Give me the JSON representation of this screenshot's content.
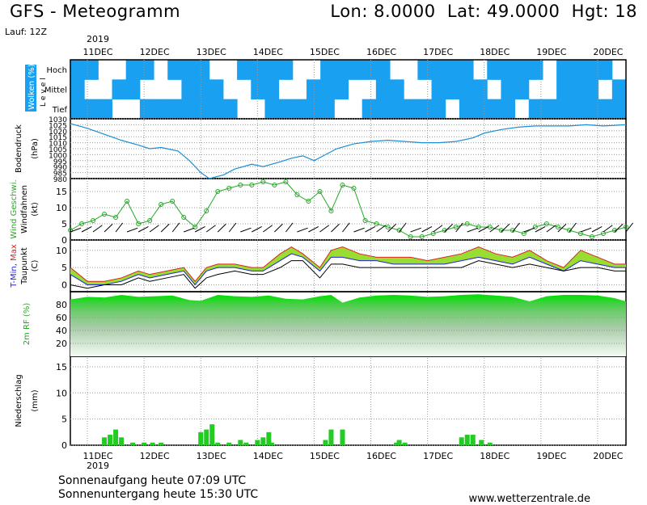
{
  "header": {
    "title": "GFS - Meteogramm",
    "location": "Lon: 8.0000  Lat: 49.0000  Hgt: 18",
    "run": "Lauf: 12Z"
  },
  "footer": {
    "sunrise": "Sonnenaufgang heute 07:09 UTC",
    "sunset": "Sonnenuntergang heute 15:30 UTC",
    "source": "www.wetterzentrale.de"
  },
  "chart_data": {
    "type": "meteogram",
    "year": "2019",
    "days": [
      "11DEC",
      "12DEC",
      "13DEC",
      "14DEC",
      "15DEC",
      "16DEC",
      "17DEC",
      "18DEC",
      "19DEC",
      "20DEC"
    ],
    "x_range_days": [
      10.7,
      20.5
    ],
    "colors": {
      "cloud": "#1aa0f0",
      "green": "#22cc22",
      "grid": "#9a9a9a",
      "lightgreen": "#99dd33"
    },
    "panels": [
      {
        "id": "clouds",
        "type": "heatmap",
        "ylabel": "Wolken (%)",
        "ylabel2": "Level",
        "levels": [
          "Hoch",
          "Mittel",
          "Tief"
        ],
        "ytick_labels": [
          "Hoch",
          "Mittel",
          "Tief"
        ]
      },
      {
        "id": "pressure",
        "type": "line",
        "ylabel": "Bodendruck",
        "yunit": "(hPa)",
        "ylim": [
          980,
          1030
        ],
        "yticks": [
          980,
          985,
          990,
          995,
          1000,
          1005,
          1010,
          1015,
          1020,
          1025,
          1030
        ],
        "x": [
          10.7,
          11.0,
          11.3,
          11.6,
          11.9,
          12.1,
          12.3,
          12.6,
          12.8,
          13.0,
          13.15,
          13.4,
          13.6,
          13.9,
          14.1,
          14.4,
          14.6,
          14.8,
          15.0,
          15.2,
          15.4,
          15.7,
          16.0,
          16.3,
          16.6,
          16.9,
          17.2,
          17.5,
          17.8,
          18.0,
          18.3,
          18.6,
          18.9,
          19.2,
          19.5,
          19.8,
          20.1,
          20.5
        ],
        "y": [
          1026,
          1022,
          1017,
          1012,
          1008,
          1005,
          1006,
          1003,
          995,
          985,
          980,
          983,
          988,
          992,
          990,
          994,
          997,
          999,
          995,
          1000,
          1005,
          1009,
          1011,
          1012,
          1011,
          1010,
          1010,
          1011,
          1014,
          1018,
          1021,
          1023,
          1024,
          1024,
          1024,
          1025,
          1024,
          1025
        ]
      },
      {
        "id": "wind",
        "type": "line",
        "ylabel": "Wind Geschwi.",
        "ylabel2": "Windfahnen",
        "yunit": "(kt)",
        "ylim": [
          0,
          19
        ],
        "yticks": [
          0,
          5,
          10,
          15
        ],
        "x": [
          10.7,
          10.9,
          11.1,
          11.3,
          11.5,
          11.7,
          11.9,
          12.1,
          12.3,
          12.5,
          12.7,
          12.9,
          13.1,
          13.3,
          13.5,
          13.7,
          13.9,
          14.1,
          14.3,
          14.5,
          14.7,
          14.9,
          15.1,
          15.3,
          15.5,
          15.7,
          15.9,
          16.1,
          16.3,
          16.5,
          16.7,
          16.9,
          17.1,
          17.3,
          17.5,
          17.7,
          17.9,
          18.1,
          18.3,
          18.5,
          18.7,
          18.9,
          19.1,
          19.3,
          19.5,
          19.7,
          19.9,
          20.1,
          20.3,
          20.5
        ],
        "y": [
          3,
          5,
          6,
          8,
          7,
          12,
          5,
          6,
          11,
          12,
          7,
          4,
          9,
          15,
          16,
          17,
          17,
          18,
          17,
          18,
          14,
          12,
          15,
          9,
          17,
          16,
          6,
          5,
          4,
          3,
          1,
          1,
          2,
          3,
          4,
          5,
          4,
          4,
          3,
          3,
          2,
          4,
          5,
          4,
          3,
          2,
          1,
          2,
          3,
          4
        ]
      },
      {
        "id": "temperature",
        "type": "line",
        "ylabel": "T-Min, Max",
        "ylabel2": "Taupunkt",
        "yunit": "(C)",
        "ylim": [
          -2,
          13
        ],
        "yticks": [
          0,
          5,
          10
        ],
        "x": [
          10.7,
          11.0,
          11.3,
          11.6,
          11.9,
          12.1,
          12.4,
          12.7,
          12.9,
          13.1,
          13.3,
          13.6,
          13.9,
          14.1,
          14.4,
          14.6,
          14.8,
          15.1,
          15.3,
          15.5,
          15.8,
          16.1,
          16.4,
          16.7,
          17.0,
          17.3,
          17.6,
          17.9,
          18.2,
          18.5,
          18.8,
          19.1,
          19.4,
          19.7,
          20.0,
          20.3,
          20.5
        ],
        "t_max": [
          5,
          1,
          1,
          2,
          4,
          3,
          4,
          5,
          1,
          5,
          6,
          6,
          5,
          5,
          9,
          11,
          9,
          5,
          10,
          11,
          9,
          8,
          8,
          8,
          7,
          8,
          9,
          11,
          9,
          8,
          10,
          7,
          5,
          10,
          8,
          6,
          6
        ],
        "t_min": [
          3,
          0,
          0,
          1,
          3,
          2,
          3,
          4,
          0,
          4,
          5,
          5,
          4,
          4,
          7,
          9,
          8,
          4,
          8,
          8,
          7,
          7,
          6,
          6,
          6,
          6,
          7,
          8,
          7,
          6,
          8,
          6,
          4,
          7,
          6,
          5,
          5
        ],
        "dewpoint": [
          0,
          -1,
          0,
          0,
          2,
          1,
          2,
          3,
          -1,
          2,
          3,
          4,
          3,
          3,
          5,
          7,
          7,
          2,
          6,
          6,
          5,
          5,
          5,
          5,
          5,
          5,
          5,
          7,
          6,
          5,
          6,
          5,
          4,
          5,
          5,
          4,
          4
        ]
      },
      {
        "id": "humidity",
        "type": "area",
        "ylabel": "2m RF (%)",
        "ylim": [
          0,
          100
        ],
        "yticks": [
          20,
          40,
          60,
          80
        ],
        "x": [
          10.7,
          11.0,
          11.3,
          11.6,
          11.9,
          12.2,
          12.5,
          12.8,
          13.0,
          13.3,
          13.6,
          13.9,
          14.2,
          14.5,
          14.8,
          15.1,
          15.3,
          15.5,
          15.8,
          16.1,
          16.4,
          16.7,
          17.0,
          17.3,
          17.6,
          17.9,
          18.2,
          18.5,
          18.8,
          19.1,
          19.4,
          19.7,
          20.0,
          20.3,
          20.5
        ],
        "y": [
          88,
          92,
          91,
          95,
          92,
          93,
          94,
          87,
          86,
          95,
          93,
          92,
          94,
          89,
          88,
          93,
          95,
          83,
          91,
          94,
          95,
          94,
          92,
          93,
          95,
          96,
          94,
          92,
          85,
          93,
          95,
          95,
          94,
          90,
          85
        ]
      },
      {
        "id": "precip",
        "type": "bar",
        "ylabel": "Niederschlag",
        "yunit": "(mm)",
        "ylim": [
          0,
          17
        ],
        "yticks": [
          0,
          5,
          10,
          15
        ],
        "x": [
          11.3,
          11.4,
          11.5,
          11.6,
          11.8,
          12.0,
          12.15,
          12.3,
          13.0,
          13.1,
          13.2,
          13.3,
          13.5,
          13.7,
          13.8,
          14.0,
          14.1,
          14.2,
          14.25,
          15.2,
          15.3,
          15.5,
          16.45,
          16.5,
          16.6,
          17.6,
          17.7,
          17.8,
          17.95,
          18.1
        ],
        "y": [
          1.5,
          2,
          3,
          1.5,
          0.5,
          0.5,
          0.5,
          0.5,
          2.5,
          3,
          4,
          0.5,
          0.5,
          1,
          0.5,
          1,
          1.5,
          2.5,
          0.5,
          1,
          3,
          3,
          0.5,
          1,
          0.5,
          1.5,
          2,
          2,
          1,
          0.5
        ]
      }
    ]
  }
}
